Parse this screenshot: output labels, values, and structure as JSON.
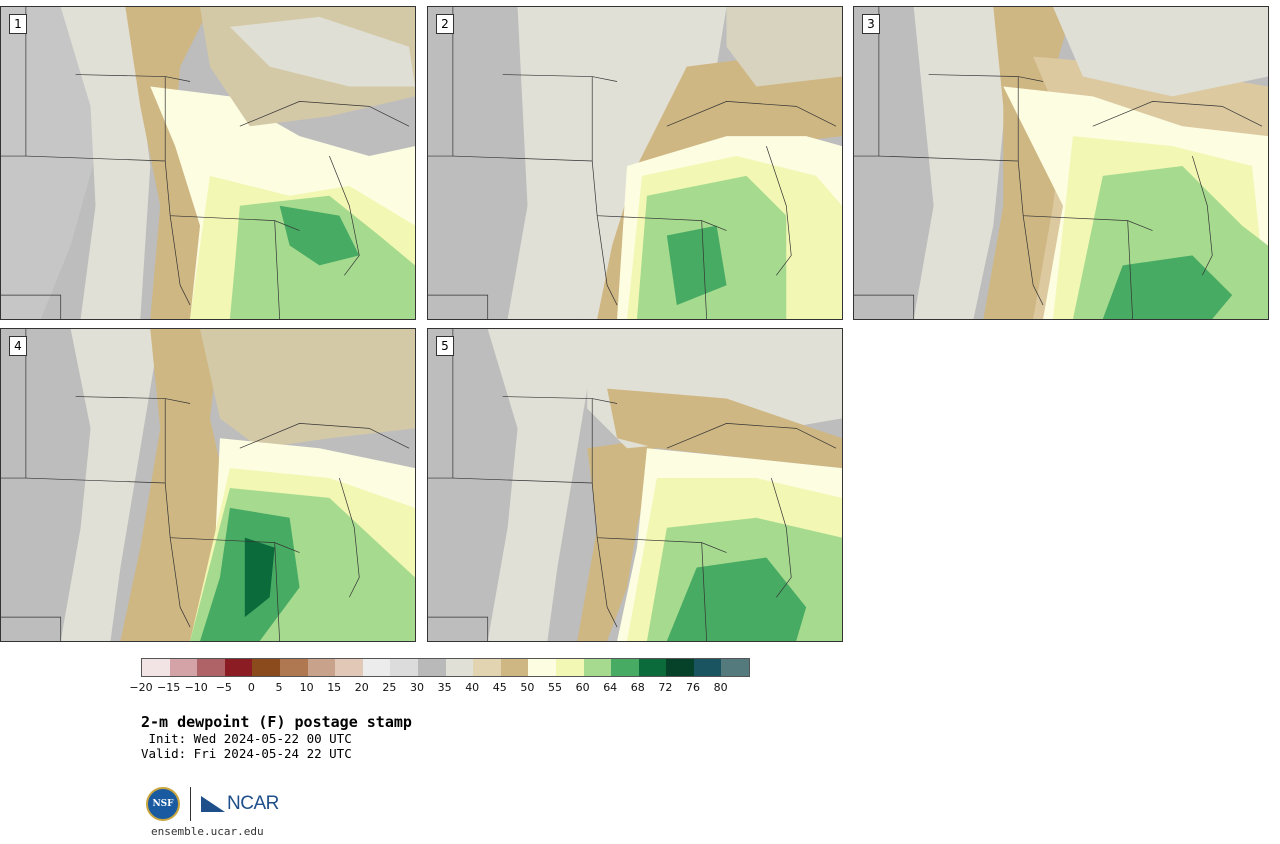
{
  "panels": [
    {
      "label": "1"
    },
    {
      "label": "2"
    },
    {
      "label": "3"
    },
    {
      "label": "4"
    },
    {
      "label": "5"
    }
  ],
  "colorbar": {
    "colors": [
      "#f2e4e4",
      "#d4a3a7",
      "#b06367",
      "#8b1c24",
      "#8b4b1d",
      "#b07850",
      "#c8a28a",
      "#e2c8b6",
      "#ececec",
      "#dcdcdc",
      "#b9b9b9",
      "#e1e0d6",
      "#e2d4b0",
      "#cfb783",
      "#fdfde2",
      "#f2f7b3",
      "#a6db8f",
      "#48ab63",
      "#0c6b3b",
      "#06412a",
      "#1b5461",
      "#557a7d"
    ],
    "ticks": [
      "−20",
      "−15",
      "−10",
      "−5",
      "0",
      "5",
      "10",
      "15",
      "20",
      "25",
      "30",
      "35",
      "40",
      "45",
      "50",
      "55",
      "60",
      "64",
      "68",
      "72",
      "76",
      "80"
    ]
  },
  "title": "2-m dewpoint (F) postage stamp",
  "init": " Init: Wed 2024-05-22 00 UTC",
  "valid": "Valid: Fri 2024-05-24 22 UTC",
  "footer": {
    "nsf_label": "NSF",
    "ncar_label": "NCAR",
    "site": "ensemble.ucar.edu"
  }
}
